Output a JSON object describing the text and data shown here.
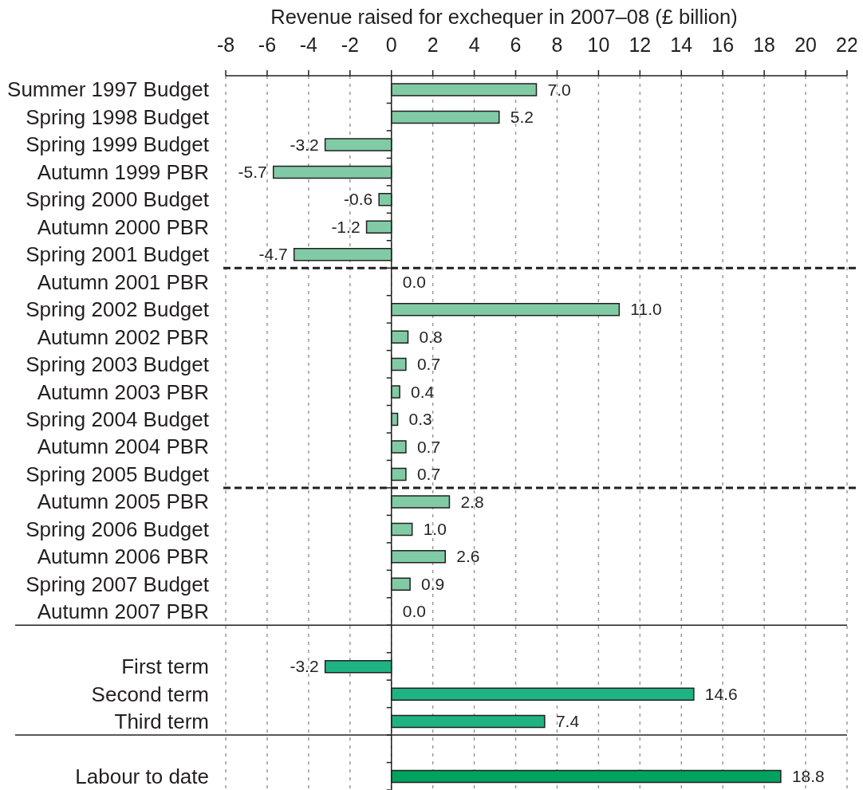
{
  "chart_data": {
    "type": "bar",
    "orientation": "horizontal",
    "xlabel": "Revenue raised for exchequer in 2007–08 (£ billion)",
    "categories": [
      "Summer 1997 Budget",
      "Spring 1998 Budget",
      "Spring 1999 Budget",
      "Autumn 1999 PBR",
      "Spring 2000 Budget",
      "Autumn 2000 PBR",
      "Spring 2001 Budget",
      "Autumn 2001 PBR",
      "Spring 2002 Budget",
      "Autumn 2002 PBR",
      "Spring 2003 Budget",
      "Autumn 2003 PBR",
      "Spring 2004 Budget",
      "Autumn 2004 PBR",
      "Spring 2005 Budget",
      "Autumn 2005 PBR",
      "Spring 2006 Budget",
      "Autumn 2006 PBR",
      "Spring 2007 Budget",
      "Autumn 2007 PBR",
      null,
      "First term",
      "Second term",
      "Third term",
      null,
      "Labour to date"
    ],
    "values": [
      7.0,
      5.2,
      -3.2,
      -5.7,
      -0.6,
      -1.2,
      -4.7,
      0.0,
      11.0,
      0.8,
      0.7,
      0.4,
      0.3,
      0.7,
      0.7,
      2.8,
      1.0,
      2.6,
      0.9,
      0.0,
      null,
      -3.2,
      14.6,
      7.4,
      null,
      18.8
    ],
    "value_labels": [
      "7.0",
      "5.2",
      "-3.2",
      "-5.7",
      "-0.6",
      "-1.2",
      "-4.7",
      "0.0",
      "11.0",
      "0.8",
      "0.7",
      "0.4",
      "0.3",
      "0.7",
      "0.7",
      "2.8",
      "1.0",
      "2.6",
      "0.9",
      "0.0",
      null,
      "-3.2",
      "14.6",
      "7.4",
      null,
      "18.8"
    ],
    "colors": [
      "#80cba5",
      "#80cba5",
      "#80cba5",
      "#80cba5",
      "#80cba5",
      "#80cba5",
      "#80cba5",
      "#80cba5",
      "#80cba5",
      "#80cba5",
      "#80cba5",
      "#80cba5",
      "#80cba5",
      "#80cba5",
      "#80cba5",
      "#80cba5",
      "#80cba5",
      "#80cba5",
      "#80cba5",
      "#80cba5",
      null,
      "#1fb384",
      "#1fb384",
      "#1fb384",
      null,
      "#00a25f"
    ],
    "xlim": [
      -8,
      22
    ],
    "xticks": [
      -8,
      -6,
      -4,
      -2,
      0,
      2,
      4,
      6,
      8,
      10,
      12,
      14,
      16,
      18,
      20,
      22
    ],
    "grid": "x",
    "ref_lines": [
      {
        "axis": "y",
        "value": "Spring 2001 Budget",
        "color": "#231f20",
        "line_style": "dashed"
      },
      {
        "axis": "y",
        "value": "Spring 2005 Budget",
        "color": "#231f20",
        "line_style": "dashed"
      },
      {
        "axis": "y",
        "value": "Autumn 2007 PBR",
        "color": "#231f20",
        "line_style": "solid"
      },
      {
        "axis": "y",
        "value": "Third term",
        "color": "#231f20",
        "line_style": "solid"
      }
    ]
  }
}
